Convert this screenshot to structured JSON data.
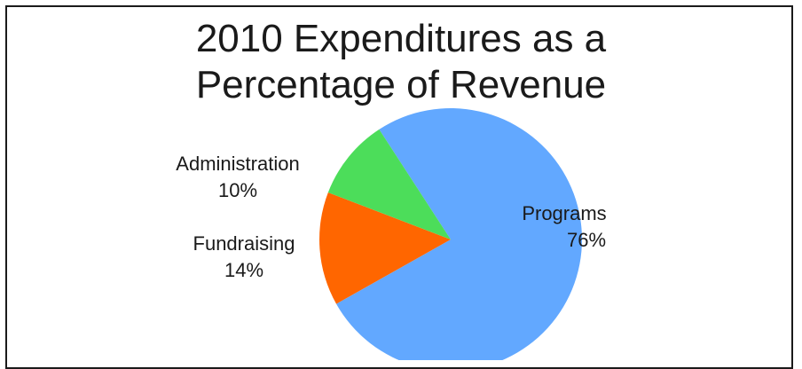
{
  "chart_data": {
    "type": "pie",
    "title_lines": [
      "2010 Expenditures as a",
      "Percentage of Revenue"
    ],
    "slices": [
      {
        "name": "Programs",
        "value": 76,
        "value_label": "76%",
        "color": "#62A8FF"
      },
      {
        "name": "Fundraising",
        "value": 14,
        "value_label": "14%",
        "color": "#FF6600"
      },
      {
        "name": "Administration",
        "value": 10,
        "value_label": "10%",
        "color": "#4CDD5A"
      }
    ],
    "legend": "none",
    "start_angle_deg": -123,
    "direction": "clockwise"
  }
}
